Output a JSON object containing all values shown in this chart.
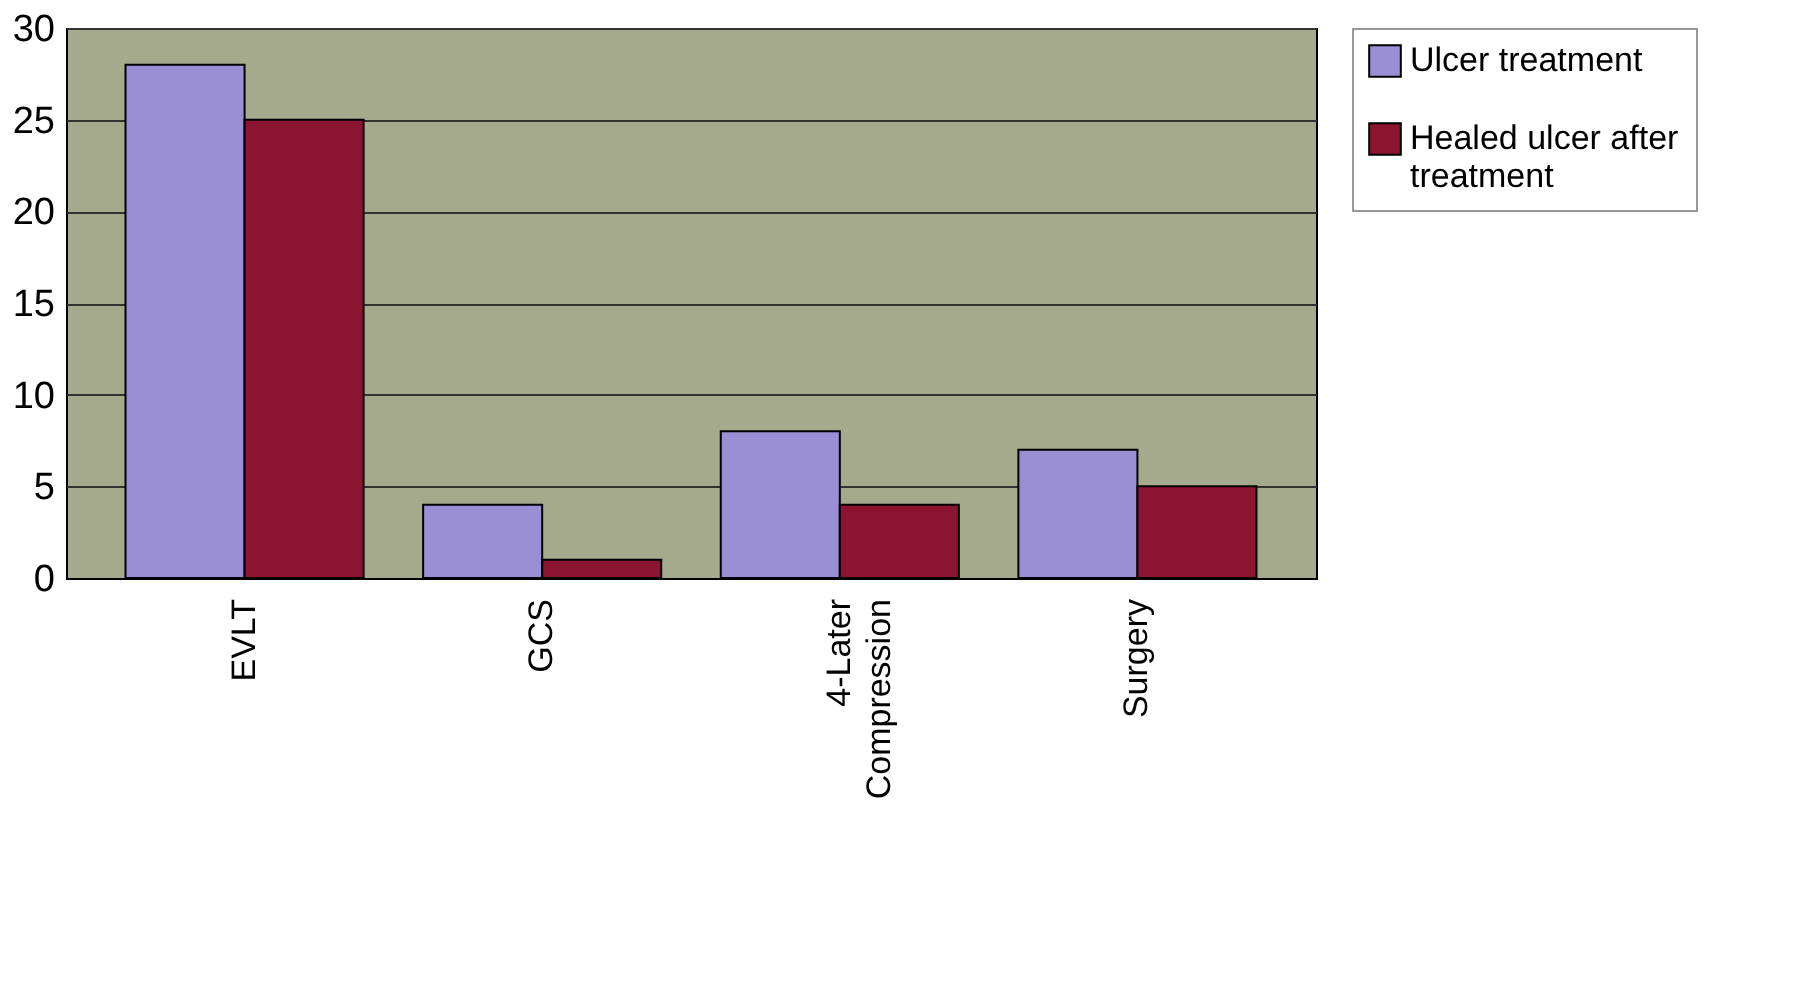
{
  "chart_data": {
    "type": "bar",
    "categories": [
      "EVLT",
      "GCS",
      "4-Later Compression",
      "Surgery"
    ],
    "series": [
      {
        "name": "Ulcer treatment",
        "color": "#9a8fd4",
        "values": [
          28,
          4,
          8,
          7
        ]
      },
      {
        "name": "Healed ulcer after treatment",
        "color": "#8b1530",
        "values": [
          25,
          1,
          4,
          5
        ]
      }
    ],
    "ylim": [
      0,
      30
    ],
    "yticks": [
      0,
      5,
      10,
      15,
      20,
      25,
      30
    ],
    "grid": "y",
    "legend": "right"
  }
}
